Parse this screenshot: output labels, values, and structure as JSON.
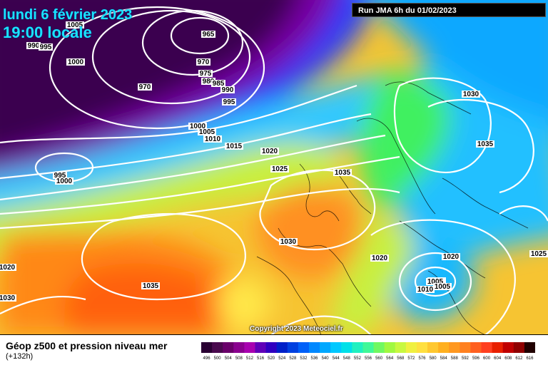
{
  "header": {
    "date": "lundi 6 février 2023",
    "time": "19:00 locale",
    "run": "Run JMA 6h du 01/02/2023"
  },
  "footer": {
    "title": "Géop z500 et pression niveau mer",
    "subtitle": "(+132h)",
    "copyright": "Copyright 2023 Meteociel.fr"
  },
  "isobar_labels": [
    "1005",
    "965",
    "990",
    "995",
    "1000",
    "970",
    "975",
    "980",
    "985",
    "990",
    "995",
    "970",
    "1000",
    "1005",
    "1010",
    "1015",
    "1020",
    "1025",
    "1035",
    "1030",
    "1035",
    "995",
    "1000",
    "1030",
    "1035",
    "1020",
    "1020",
    "1025",
    "1020",
    "1030",
    "1020",
    "1005",
    "1005",
    "1010"
  ],
  "scale_ticks": [
    "496",
    "500",
    "504",
    "508",
    "512",
    "516",
    "520",
    "524",
    "528",
    "532",
    "536",
    "540",
    "544",
    "548",
    "552",
    "556",
    "560",
    "564",
    "568",
    "572",
    "576",
    "580",
    "584",
    "588",
    "592",
    "596",
    "600",
    "604",
    "608",
    "612",
    "616"
  ],
  "colors": {
    "scale": [
      "#2a0033",
      "#4a0a4e",
      "#6a006a",
      "#8a008f",
      "#a800b0",
      "#6000b8",
      "#3000c0",
      "#0020c8",
      "#0040e0",
      "#0060f8",
      "#0088ff",
      "#00a8ff",
      "#00c8ff",
      "#00e0e8",
      "#20f0c0",
      "#40f898",
      "#70f860",
      "#a0f840",
      "#c8f840",
      "#f0f040",
      "#ffe040",
      "#ffc830",
      "#ffb020",
      "#ff9820",
      "#ff8020",
      "#ff6020",
      "#ff4020",
      "#e82000",
      "#c00000",
      "#900000",
      "#200000"
    ]
  }
}
